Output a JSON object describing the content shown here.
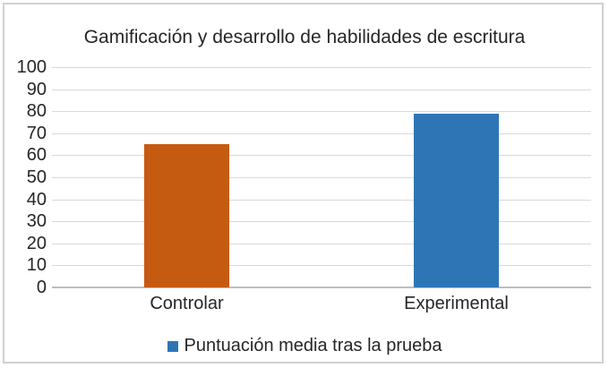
{
  "chart_data": {
    "type": "bar",
    "title": "Gamificación y desarrollo de habilidades de escritura",
    "categories": [
      "Controlar",
      "Experimental"
    ],
    "series": [
      {
        "name": "Puntuación media tras la prueba",
        "values": [
          65,
          79
        ]
      }
    ],
    "xlabel": "",
    "ylabel": "",
    "ylim": [
      0,
      100
    ],
    "ytick_step": 10,
    "grid": true,
    "legend_position": "bottom",
    "colors": {
      "bar_points": [
        "#C55A11",
        "#2E75B6"
      ],
      "legend_marker": "#2E75B6",
      "gridline": "#D9D9D9",
      "axis_line": "#BFBFBF",
      "text": "#262626",
      "frame_border": "#D2D0D0",
      "background": "#FFFFFF"
    }
  }
}
